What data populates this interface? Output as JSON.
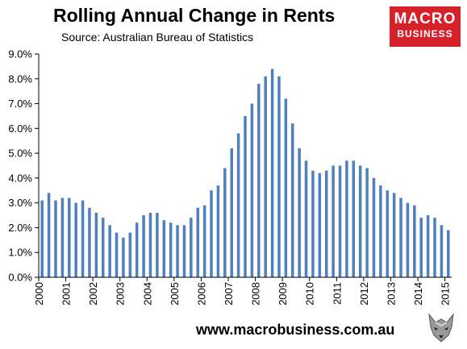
{
  "header": {
    "title": "Rolling Annual Change in Rents",
    "subtitle": "Source: Australian Bureau of Statistics"
  },
  "logo": {
    "line1": "MACRO",
    "line2": "BUSINESS",
    "color": "#d6202a"
  },
  "footer": {
    "url": "www.macrobusiness.com.au",
    "mascot_icon": "wolf-head-icon"
  },
  "chart_data": {
    "type": "bar",
    "title": "Rolling Annual Change in Rents",
    "subtitle": "Source: Australian Bureau of Statistics",
    "xlabel": "",
    "ylabel": "",
    "ylim": [
      0,
      9
    ],
    "y_ticks": [
      "0.0%",
      "1.0%",
      "2.0%",
      "3.0%",
      "4.0%",
      "5.0%",
      "6.0%",
      "7.0%",
      "8.0%",
      "9.0%"
    ],
    "x_tick_labels": [
      "2000",
      "2001",
      "2002",
      "2003",
      "2004",
      "2005",
      "2006",
      "2007",
      "2008",
      "2009",
      "2010",
      "2011",
      "2012",
      "2013",
      "2014",
      "2015"
    ],
    "grid": false,
    "bar_color": "#4f81bd",
    "series": [
      {
        "values": [
          3.1,
          3.4,
          3.1,
          3.2,
          3.2,
          3.0,
          3.1,
          2.8,
          2.6,
          2.4,
          2.1,
          1.8,
          1.6,
          1.8,
          2.2,
          2.5,
          2.6,
          2.6,
          2.3,
          2.2,
          2.1,
          2.1,
          2.4,
          2.8,
          2.9,
          3.5,
          3.7,
          4.4,
          5.2,
          5.8,
          6.5,
          7.0,
          7.8,
          8.1,
          8.4,
          8.1,
          7.2,
          6.2,
          5.2,
          4.7,
          4.3,
          4.2,
          4.3,
          4.5,
          4.5,
          4.7,
          4.7,
          4.5,
          4.4,
          4.0,
          3.7,
          3.5,
          3.4,
          3.2,
          3.0,
          2.9,
          2.4,
          2.5,
          2.4,
          2.1,
          1.9
        ]
      }
    ]
  }
}
